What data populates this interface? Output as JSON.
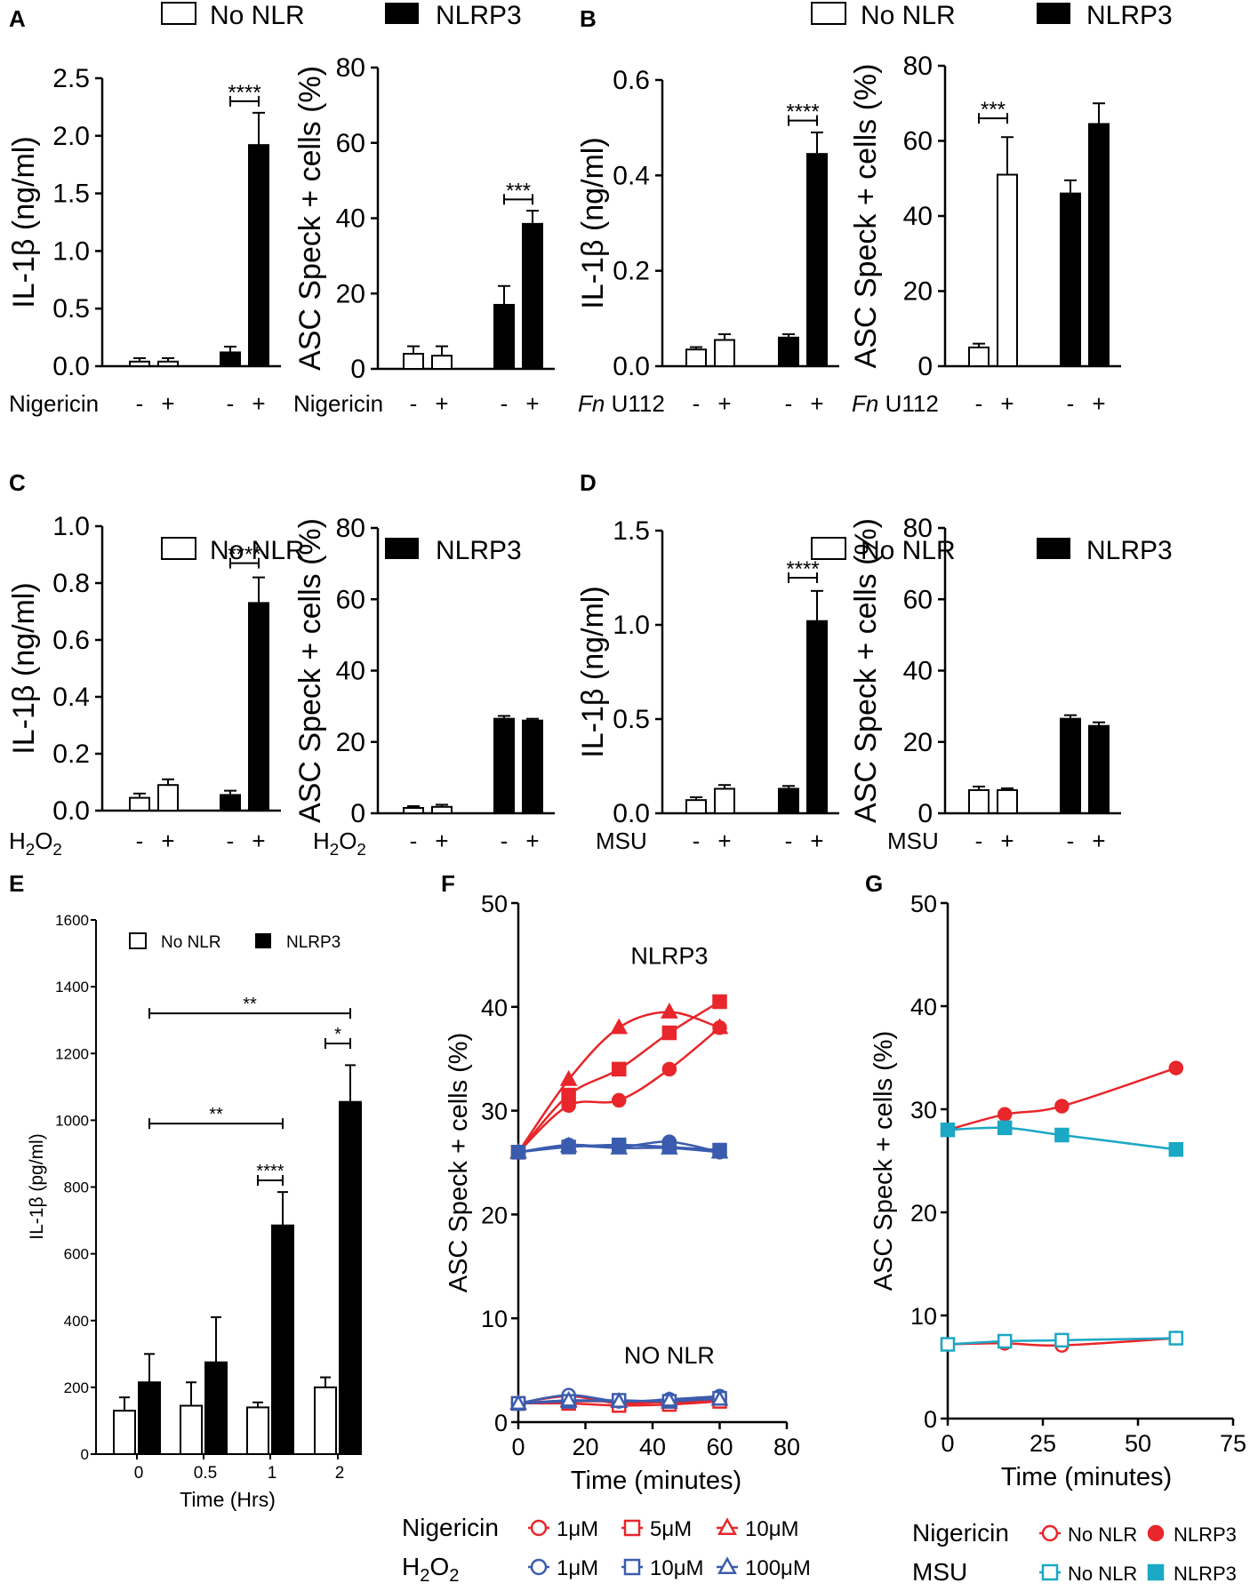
{
  "legends": {
    "no_nlr": "No NLR",
    "nlrp3": "NLRP3"
  },
  "chart_data": [
    {
      "id": "A1",
      "panel_label": "A",
      "type": "bar",
      "ylabel": "IL-1β (ng/ml)",
      "ylim": [
        0,
        2.5
      ],
      "yticks": [
        0.0,
        0.5,
        1.0,
        1.5,
        2.0,
        2.5
      ],
      "ytick_labels": [
        "0.0",
        "0.5",
        "1.0",
        "1.5",
        "2.0",
        "2.5"
      ],
      "treatment": "Nigericin",
      "treatment_levels": [
        "-",
        "+",
        "-",
        "+"
      ],
      "bars": [
        {
          "group": "No NLR",
          "value": 0.04,
          "error": 0.03
        },
        {
          "group": "No NLR",
          "value": 0.04,
          "error": 0.03
        },
        {
          "group": "NLRP3",
          "value": 0.12,
          "error": 0.05
        },
        {
          "group": "NLRP3",
          "value": 1.92,
          "error": 0.28
        }
      ],
      "significance": [
        {
          "from": 2,
          "to": 3,
          "label": "****",
          "y": 2.3
        }
      ]
    },
    {
      "id": "A2",
      "type": "bar",
      "ylabel": "ASC Speck + cells (%)",
      "ylim": [
        0,
        80
      ],
      "yticks": [
        0,
        20,
        40,
        60,
        80
      ],
      "ytick_labels": [
        "0",
        "20",
        "40",
        "60",
        "80"
      ],
      "treatment": "Nigericin",
      "treatment_levels": [
        "-",
        "+",
        "-",
        "+"
      ],
      "bars": [
        {
          "group": "No NLR",
          "value": 4,
          "error": 2
        },
        {
          "group": "No NLR",
          "value": 3.5,
          "error": 2.5
        },
        {
          "group": "NLRP3",
          "value": 17,
          "error": 5
        },
        {
          "group": "NLRP3",
          "value": 38.5,
          "error": 3.5
        }
      ],
      "significance": [
        {
          "from": 2,
          "to": 3,
          "label": "***",
          "y": 45
        }
      ]
    },
    {
      "id": "B1",
      "panel_label": "B",
      "type": "bar",
      "ylabel": "IL-1β (ng/ml)",
      "ylim": [
        0,
        0.6
      ],
      "yticks": [
        0.0,
        0.2,
        0.4,
        0.6
      ],
      "ytick_labels": [
        "0.0",
        "0.2",
        "0.4",
        "0.6"
      ],
      "treatment_italic": "Fn",
      "treatment": " U112",
      "treatment_levels": [
        "-",
        "+",
        "-",
        "+"
      ],
      "bars": [
        {
          "group": "No NLR",
          "value": 0.035,
          "error": 0.005
        },
        {
          "group": "No NLR",
          "value": 0.055,
          "error": 0.012
        },
        {
          "group": "NLRP3",
          "value": 0.06,
          "error": 0.007
        },
        {
          "group": "NLRP3",
          "value": 0.445,
          "error": 0.045
        }
      ],
      "significance": [
        {
          "from": 2,
          "to": 3,
          "label": "****",
          "y": 0.515
        }
      ]
    },
    {
      "id": "B2",
      "type": "bar",
      "ylabel": "ASC Speck + cells (%)",
      "ylim": [
        0,
        80
      ],
      "yticks": [
        0,
        20,
        40,
        60,
        80
      ],
      "ytick_labels": [
        "0",
        "20",
        "40",
        "60",
        "80"
      ],
      "treatment_italic": "Fn",
      "treatment": " U112",
      "treatment_levels": [
        "-",
        "+",
        "-",
        "+"
      ],
      "bars": [
        {
          "group": "No NLR",
          "value": 5,
          "error": 1
        },
        {
          "group": "No NLR",
          "value": 51,
          "error": 10
        },
        {
          "group": "NLRP3",
          "value": 46,
          "error": 3.5
        },
        {
          "group": "NLRP3",
          "value": 64.5,
          "error": 5.5
        }
      ],
      "significance": [
        {
          "from": 0,
          "to": 1,
          "label": "***",
          "y": 66
        }
      ]
    },
    {
      "id": "C1",
      "panel_label": "C",
      "type": "bar",
      "ylabel": "IL-1β (ng/ml)",
      "ylim": [
        0,
        1.0
      ],
      "yticks": [
        0.0,
        0.2,
        0.4,
        0.6,
        0.8,
        1.0
      ],
      "ytick_labels": [
        "0.0",
        "0.2",
        "0.4",
        "0.6",
        "0.8",
        "1.0"
      ],
      "treatment": "H2O2",
      "treatment_levels": [
        "-",
        "+",
        "-",
        "+"
      ],
      "bars": [
        {
          "group": "No NLR",
          "value": 0.045,
          "error": 0.015
        },
        {
          "group": "No NLR",
          "value": 0.09,
          "error": 0.02
        },
        {
          "group": "NLRP3",
          "value": 0.055,
          "error": 0.015
        },
        {
          "group": "NLRP3",
          "value": 0.73,
          "error": 0.09
        }
      ],
      "significance": [
        {
          "from": 2,
          "to": 3,
          "label": "****",
          "y": 0.87
        }
      ]
    },
    {
      "id": "C2",
      "type": "bar",
      "ylabel": "ASC Speck + cells (%)",
      "ylim": [
        0,
        80
      ],
      "yticks": [
        0,
        20,
        40,
        60,
        80
      ],
      "ytick_labels": [
        "0",
        "20",
        "40",
        "60",
        "80"
      ],
      "treatment": "H2O2",
      "treatment_levels": [
        "-",
        "+",
        "-",
        "+"
      ],
      "bars": [
        {
          "group": "No NLR",
          "value": 1.5,
          "error": 0.5
        },
        {
          "group": "No NLR",
          "value": 1.8,
          "error": 0.6
        },
        {
          "group": "NLRP3",
          "value": 26.5,
          "error": 0.8
        },
        {
          "group": "NLRP3",
          "value": 26,
          "error": 0.5
        }
      ],
      "significance": []
    },
    {
      "id": "D1",
      "panel_label": "D",
      "type": "bar",
      "ylabel": "IL-1β (ng/ml)",
      "ylim": [
        0,
        1.5
      ],
      "yticks": [
        0.0,
        0.5,
        1.0,
        1.5
      ],
      "ytick_labels": [
        "0.0",
        "0.5",
        "1.0",
        "1.5"
      ],
      "treatment": "MSU",
      "treatment_levels": [
        "-",
        "+",
        "-",
        "+"
      ],
      "bars": [
        {
          "group": "No NLR",
          "value": 0.07,
          "error": 0.015
        },
        {
          "group": "No NLR",
          "value": 0.13,
          "error": 0.02
        },
        {
          "group": "NLRP3",
          "value": 0.13,
          "error": 0.015
        },
        {
          "group": "NLRP3",
          "value": 1.02,
          "error": 0.16
        }
      ],
      "significance": [
        {
          "from": 2,
          "to": 3,
          "label": "****",
          "y": 1.25
        }
      ]
    },
    {
      "id": "D2",
      "type": "bar",
      "ylabel": "ASC Speck + cells (%)",
      "ylim": [
        0,
        80
      ],
      "yticks": [
        0,
        20,
        40,
        60,
        80
      ],
      "ytick_labels": [
        "0",
        "20",
        "40",
        "60",
        "80"
      ],
      "treatment": "MSU",
      "treatment_levels": [
        "-",
        "+",
        "-",
        "+"
      ],
      "bars": [
        {
          "group": "No NLR",
          "value": 6.5,
          "error": 1
        },
        {
          "group": "No NLR",
          "value": 6.5,
          "error": 0.5
        },
        {
          "group": "NLRP3",
          "value": 26.5,
          "error": 1
        },
        {
          "group": "NLRP3",
          "value": 24.5,
          "error": 1
        }
      ],
      "significance": []
    },
    {
      "id": "E",
      "panel_label": "E",
      "type": "bar",
      "ylabel": "IL-1β (pg/ml)",
      "xlabel": "Time (Hrs)",
      "ylim": [
        0,
        1600
      ],
      "yticks": [
        0,
        200,
        400,
        600,
        800,
        1000,
        1200,
        1400,
        1600
      ],
      "ytick_labels": [
        "0",
        "200",
        "400",
        "600",
        "800",
        "1000",
        "1200",
        "1400",
        "1600"
      ],
      "categories": [
        "0",
        "0.5",
        "1",
        "2"
      ],
      "series": [
        {
          "name": "No NLR",
          "values": [
            130,
            145,
            140,
            200
          ],
          "errors": [
            40,
            70,
            15,
            30
          ]
        },
        {
          "name": "NLRP3",
          "values": [
            215,
            275,
            685,
            1055
          ],
          "errors": [
            85,
            135,
            100,
            110
          ]
        }
      ],
      "significance": [
        {
          "label": "**",
          "from": [
            "0",
            "NLRP3"
          ],
          "to": [
            "2",
            "NLRP3"
          ],
          "y": 1320
        },
        {
          "label": "*",
          "from": [
            "2",
            "No NLR"
          ],
          "to": [
            "2",
            "NLRP3"
          ],
          "y": 1230
        },
        {
          "label": "**",
          "from": [
            "0",
            "NLRP3"
          ],
          "to": [
            "1",
            "NLRP3"
          ],
          "y": 990
        },
        {
          "label": "****",
          "from": [
            "1",
            "No NLR"
          ],
          "to": [
            "1",
            "NLRP3"
          ],
          "y": 820
        }
      ],
      "legend": [
        "No NLR",
        "NLRP3"
      ]
    },
    {
      "id": "F",
      "panel_label": "F",
      "type": "line",
      "ylabel": "ASC Speck + cells (%)",
      "xlabel": "Time (minutes)",
      "xlim": [
        0,
        80
      ],
      "ylim": [
        0,
        50
      ],
      "xticks": [
        0,
        20,
        40,
        60,
        80
      ],
      "yticks": [
        0,
        10,
        20,
        30,
        40,
        50
      ],
      "xtick_labels": [
        "0",
        "20",
        "40",
        "60",
        "80"
      ],
      "ytick_labels": [
        "0",
        "10",
        "20",
        "30",
        "40",
        "50"
      ],
      "annotations": [
        {
          "text": "NLRP3",
          "x": 45,
          "y": 45
        },
        {
          "text": "NO NLR",
          "x": 45,
          "y": 6.5
        }
      ],
      "series": [
        {
          "name": "Nigericin 1μM NLRP3",
          "color": "#e8262b",
          "marker": "circle",
          "filled": true,
          "x": [
            0,
            15,
            30,
            45,
            60
          ],
          "y": [
            26,
            30.5,
            31,
            34,
            38
          ]
        },
        {
          "name": "Nigericin 5μM NLRP3",
          "color": "#e8262b",
          "marker": "square",
          "filled": true,
          "x": [
            0,
            15,
            30,
            45,
            60
          ],
          "y": [
            26,
            31.5,
            34,
            37.5,
            40.5
          ]
        },
        {
          "name": "Nigericin 10μM NLRP3",
          "color": "#e8262b",
          "marker": "triangle",
          "filled": true,
          "x": [
            0,
            15,
            30,
            45,
            60
          ],
          "y": [
            26,
            33,
            38,
            39.5,
            38
          ]
        },
        {
          "name": "H2O2 1μM NLRP3",
          "color": "#3b5cae",
          "marker": "circle",
          "filled": true,
          "x": [
            0,
            15,
            30,
            45,
            60
          ],
          "y": [
            26,
            26.7,
            26.5,
            27,
            26
          ]
        },
        {
          "name": "H2O2 10μM NLRP3",
          "color": "#3b5cae",
          "marker": "square",
          "filled": true,
          "x": [
            0,
            15,
            30,
            45,
            60
          ],
          "y": [
            26,
            26.5,
            26.7,
            26.5,
            26.2
          ]
        },
        {
          "name": "H2O2 100μM NLRP3",
          "color": "#3b5cae",
          "marker": "triangle",
          "filled": true,
          "x": [
            0,
            15,
            30,
            45,
            60
          ],
          "y": [
            26,
            26.6,
            26.4,
            26.4,
            26
          ]
        },
        {
          "name": "Nigericin 1μM No NLR",
          "color": "#e8262b",
          "marker": "circle",
          "filled": false,
          "x": [
            0,
            15,
            30,
            45,
            60
          ],
          "y": [
            1.8,
            2.5,
            1.8,
            2,
            2.4
          ]
        },
        {
          "name": "Nigericin 5μM No NLR",
          "color": "#e8262b",
          "marker": "square",
          "filled": false,
          "x": [
            0,
            15,
            30,
            45,
            60
          ],
          "y": [
            1.8,
            1.8,
            1.6,
            1.7,
            2
          ]
        },
        {
          "name": "Nigericin 10μM No NLR",
          "color": "#e8262b",
          "marker": "triangle",
          "filled": false,
          "x": [
            0,
            15,
            30,
            45,
            60
          ],
          "y": [
            1.8,
            2,
            2,
            1.9,
            2.2
          ]
        },
        {
          "name": "H2O2 1μM No NLR",
          "color": "#3b5cae",
          "marker": "circle",
          "filled": false,
          "x": [
            0,
            15,
            30,
            45,
            60
          ],
          "y": [
            1.8,
            2.6,
            2,
            2.2,
            2.5
          ]
        },
        {
          "name": "H2O2 10μM No NLR",
          "color": "#3b5cae",
          "marker": "square",
          "filled": false,
          "x": [
            0,
            15,
            30,
            45,
            60
          ],
          "y": [
            1.8,
            2,
            2.1,
            2,
            2.3
          ]
        },
        {
          "name": "H2O2 100μM No NLR",
          "color": "#3b5cae",
          "marker": "triangle",
          "filled": false,
          "x": [
            0,
            15,
            30,
            45,
            60
          ],
          "y": [
            1.8,
            2.1,
            2,
            2.1,
            2.2
          ]
        }
      ],
      "legend_rows": [
        {
          "label": "Nigericin",
          "color": "#e8262b",
          "items": [
            {
              "marker": "circle",
              "text": "1μM"
            },
            {
              "marker": "square",
              "text": "5μM"
            },
            {
              "marker": "triangle",
              "text": "10μM"
            }
          ]
        },
        {
          "label": "H2O2",
          "color": "#3b5cae",
          "items": [
            {
              "marker": "circle",
              "text": "1μM"
            },
            {
              "marker": "square",
              "text": "10μM"
            },
            {
              "marker": "triangle",
              "text": "100μM"
            }
          ]
        }
      ]
    },
    {
      "id": "G",
      "panel_label": "G",
      "type": "line",
      "ylabel": "ASC Speck + cells (%)",
      "xlabel": "Time (minutes)",
      "xlim": [
        0,
        75
      ],
      "ylim": [
        0,
        50
      ],
      "xticks": [
        0,
        25,
        50,
        75
      ],
      "yticks": [
        0,
        10,
        20,
        30,
        40,
        50
      ],
      "xtick_labels": [
        "0",
        "25",
        "50",
        "75"
      ],
      "ytick_labels": [
        "0",
        "10",
        "20",
        "30",
        "40",
        "50"
      ],
      "series": [
        {
          "name": "Nigericin NLRP3",
          "color": "#e8262b",
          "marker": "circle",
          "filled": true,
          "x": [
            0,
            15,
            30,
            60
          ],
          "y": [
            28,
            29.5,
            30.3,
            34
          ]
        },
        {
          "name": "MSU NLRP3",
          "color": "#1aa8c4",
          "marker": "square",
          "filled": true,
          "x": [
            0,
            15,
            30,
            60
          ],
          "y": [
            28,
            28.2,
            27.5,
            26.1
          ]
        },
        {
          "name": "Nigericin No NLR",
          "color": "#e8262b",
          "marker": "circle",
          "filled": false,
          "x": [
            0,
            15,
            30,
            60
          ],
          "y": [
            7.2,
            7.3,
            7.1,
            7.8
          ]
        },
        {
          "name": "MSU No NLR",
          "color": "#1aa8c4",
          "marker": "square",
          "filled": false,
          "x": [
            0,
            15,
            30,
            60
          ],
          "y": [
            7.2,
            7.5,
            7.6,
            7.8
          ]
        }
      ],
      "legend_rows": [
        {
          "label": "Nigericin",
          "color": "#e8262b",
          "items": [
            {
              "marker": "circle",
              "filled": false,
              "text": "No NLR"
            },
            {
              "marker": "circle",
              "filled": true,
              "text": "NLRP3"
            }
          ]
        },
        {
          "label": "MSU",
          "color": "#1aa8c4",
          "items": [
            {
              "marker": "square",
              "filled": false,
              "text": "No NLR"
            },
            {
              "marker": "square",
              "filled": true,
              "text": "NLRP3"
            }
          ]
        }
      ]
    }
  ]
}
